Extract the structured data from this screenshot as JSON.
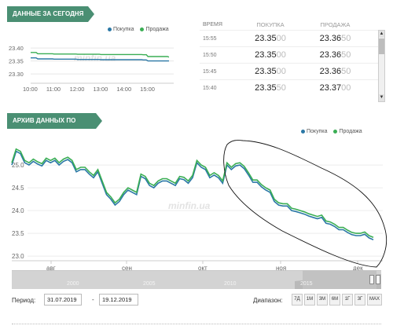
{
  "today": {
    "title": "ДАННЫЕ ЗА СЕГОДНЯ",
    "legend": {
      "buy": "Покупка",
      "sell": "Продажа"
    },
    "watermark": "minfin.ua"
  },
  "quotes": {
    "headers": {
      "time": "ВРЕМЯ",
      "buy": "ПОКУПКА",
      "sell": "ПРОДАЖА"
    },
    "rows": [
      {
        "time": "15:55",
        "buy_main": "23.35",
        "buy_tail": "00",
        "sell_main": "23.36",
        "sell_tail": "50"
      },
      {
        "time": "15:50",
        "buy_main": "23.35",
        "buy_tail": "00",
        "sell_main": "23.36",
        "sell_tail": "50"
      },
      {
        "time": "15:45",
        "buy_main": "23.35",
        "buy_tail": "00",
        "sell_main": "23.36",
        "sell_tail": "50"
      },
      {
        "time": "15:40",
        "buy_main": "23.35",
        "buy_tail": "50",
        "sell_main": "23.37",
        "sell_tail": "00"
      }
    ],
    "scroll_up_icon": "▲",
    "scroll_down_icon": "▼"
  },
  "history": {
    "title": "АРХИВ ДАННЫХ ПО ДНЯМ",
    "legend": {
      "buy": "Покупка",
      "sell": "Продажа"
    },
    "watermark": "minfin.ua"
  },
  "navigator": {
    "years": [
      "2000",
      "2005",
      "2010",
      "2015"
    ]
  },
  "controls": {
    "period_label": "Период:",
    "date_from": "31.07.2019",
    "dash": "-",
    "date_to": "19.12.2019",
    "range_label": "Диапазон:",
    "range_buttons": [
      "7Д",
      "1М",
      "3М",
      "6М",
      "1Г",
      "3Г",
      "MAX"
    ]
  },
  "colors": {
    "buy": "#2b78a6",
    "sell": "#3aae54",
    "header": "#4a8f73"
  },
  "chart_data": [
    {
      "type": "line",
      "title": "ДАННЫЕ ЗА СЕГОДНЯ",
      "x_ticks": [
        "10:00",
        "11:00",
        "12:00",
        "13:00",
        "14:00",
        "15:00"
      ],
      "y_ticks": [
        "23.30",
        "23.35",
        "23.40"
      ],
      "ylim": [
        23.27,
        23.44
      ],
      "xlim": [
        10,
        16.1
      ],
      "series": [
        {
          "name": "Покупка",
          "color": "#2b78a6",
          "x": [
            10.0,
            10.3,
            11.0,
            12.0,
            13.0,
            14.0,
            14.8,
            15.0,
            15.9
          ],
          "values": [
            23.362,
            23.358,
            23.357,
            23.356,
            23.355,
            23.355,
            23.354,
            23.35,
            23.35
          ]
        },
        {
          "name": "Продажа",
          "color": "#3aae54",
          "x": [
            10.0,
            10.3,
            11.0,
            12.0,
            13.0,
            14.0,
            14.8,
            15.0,
            15.9
          ],
          "values": [
            23.383,
            23.378,
            23.377,
            23.376,
            23.375,
            23.375,
            23.374,
            23.367,
            23.365
          ]
        }
      ]
    },
    {
      "type": "line",
      "title": "АРХИВ ДАННЫХ ПО ДНЯМ",
      "x_ticks": [
        "авг",
        "сен",
        "окт",
        "ноя",
        "дек"
      ],
      "y_ticks": [
        "23.0",
        "23.5",
        "24.0",
        "24.5",
        "25.0"
      ],
      "ylim": [
        22.95,
        25.45
      ],
      "series": [
        {
          "name": "Покупка",
          "color": "#2b78a6",
          "values": [
            25.0,
            25.3,
            25.25,
            25.05,
            25.0,
            25.08,
            25.02,
            24.98,
            25.1,
            25.05,
            25.1,
            25.0,
            25.08,
            25.12,
            25.05,
            24.85,
            24.9,
            24.9,
            24.8,
            24.72,
            24.85,
            24.6,
            24.35,
            24.25,
            24.12,
            24.2,
            24.35,
            24.45,
            24.4,
            24.35,
            24.75,
            24.7,
            24.55,
            24.5,
            24.6,
            24.65,
            24.65,
            24.6,
            24.55,
            24.7,
            24.68,
            24.6,
            24.72,
            25.05,
            24.95,
            24.9,
            24.72,
            24.78,
            24.72,
            24.6,
            25.0,
            24.9,
            24.98,
            25.0,
            24.92,
            24.78,
            24.62,
            24.62,
            24.52,
            24.45,
            24.4,
            24.2,
            24.12,
            24.1,
            24.1,
            24.0,
            23.98,
            23.95,
            23.92,
            23.88,
            23.85,
            23.82,
            23.85,
            23.72,
            23.7,
            23.65,
            23.58,
            23.58,
            23.52,
            23.47,
            23.45,
            23.45,
            23.48,
            23.4,
            23.36
          ]
        },
        {
          "name": "Продажа",
          "color": "#3aae54",
          "values": [
            25.05,
            25.35,
            25.3,
            25.1,
            25.05,
            25.13,
            25.07,
            25.03,
            25.15,
            25.1,
            25.15,
            25.05,
            25.13,
            25.17,
            25.1,
            24.9,
            24.95,
            24.95,
            24.85,
            24.77,
            24.9,
            24.65,
            24.4,
            24.3,
            24.17,
            24.25,
            24.4,
            24.5,
            24.45,
            24.4,
            24.8,
            24.75,
            24.6,
            24.55,
            24.65,
            24.7,
            24.7,
            24.65,
            24.6,
            24.75,
            24.73,
            24.65,
            24.77,
            25.1,
            25.0,
            24.95,
            24.77,
            24.83,
            24.77,
            24.65,
            25.05,
            24.95,
            25.03,
            25.05,
            24.97,
            24.83,
            24.67,
            24.67,
            24.57,
            24.5,
            24.45,
            24.25,
            24.17,
            24.15,
            24.15,
            24.05,
            24.03,
            24.0,
            23.97,
            23.93,
            23.9,
            23.87,
            23.9,
            23.77,
            23.75,
            23.7,
            23.63,
            23.63,
            23.57,
            23.52,
            23.5,
            23.5,
            23.53,
            23.45,
            23.41
          ]
        }
      ]
    }
  ]
}
